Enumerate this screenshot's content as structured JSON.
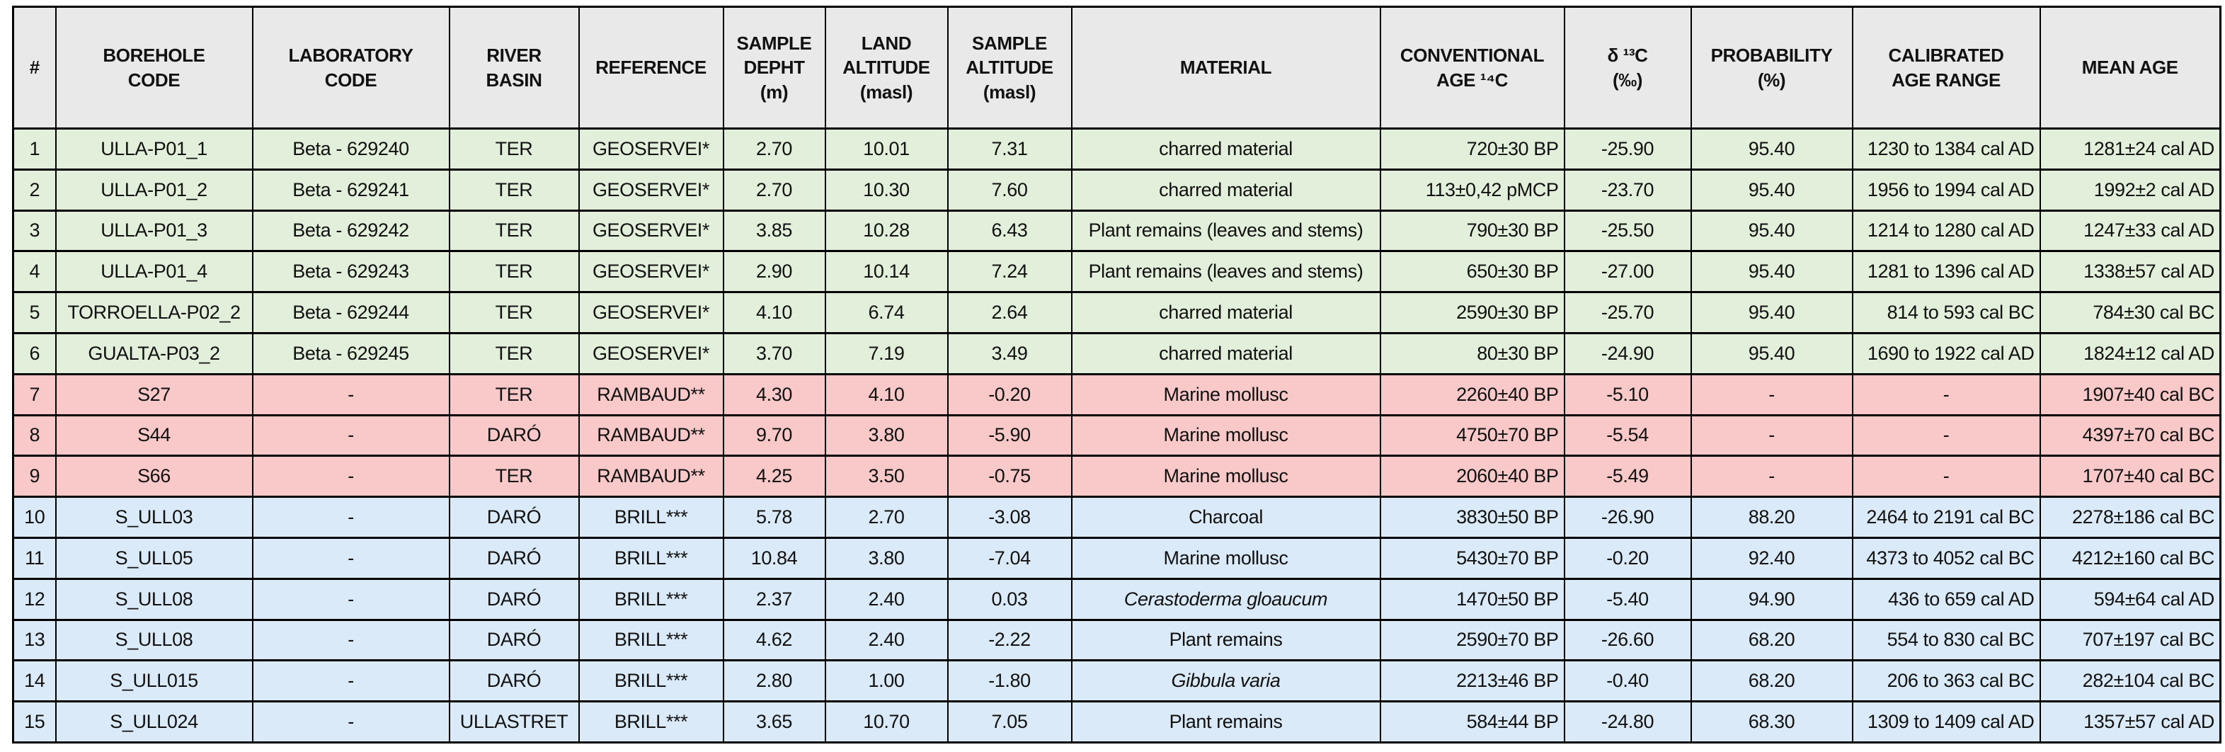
{
  "chart_data": {
    "type": "table",
    "columns": [
      {
        "label": "#",
        "align": "center"
      },
      {
        "label": "BOREHOLE\nCODE",
        "align": "center"
      },
      {
        "label": "LABORATORY\nCODE",
        "align": "center"
      },
      {
        "label": "RIVER\nBASIN",
        "align": "center"
      },
      {
        "label": "REFERENCE",
        "align": "center"
      },
      {
        "label": "SAMPLE\nDEPHT\n(m)",
        "align": "center"
      },
      {
        "label": "LAND\nALTITUDE\n(masl)",
        "align": "center"
      },
      {
        "label": "SAMPLE\nALTITUDE\n(masl)",
        "align": "center"
      },
      {
        "label": "MATERIAL",
        "align": "center"
      },
      {
        "label": "CONVENTIONAL\nAGE ¹⁴C",
        "align": "right"
      },
      {
        "label": "δ ¹³C\n(‰)",
        "align": "center"
      },
      {
        "label": "PROBABILITY\n(%)",
        "align": "center"
      },
      {
        "label": "CALIBRATED\nAGE RANGE",
        "align": "right"
      },
      {
        "label": "MEAN AGE",
        "align": "right"
      }
    ],
    "empty_marker": "-",
    "header_bg": "#e9e9e9",
    "group_colors": {
      "green": "#e2efda",
      "pink": "#f9c8c8",
      "blue": "#daeaf8"
    },
    "rows": [
      {
        "group": "green",
        "italic_cells": [],
        "cells": [
          "1",
          "ULLA-P01_1",
          "Beta - 629240",
          "TER",
          "GEOSERVEI*",
          "2.70",
          "10.01",
          "7.31",
          "charred material",
          "720±30 BP",
          "-25.90",
          "95.40",
          "1230 to 1384 cal AD",
          "1281±24 cal AD"
        ]
      },
      {
        "group": "green",
        "italic_cells": [],
        "cells": [
          "2",
          "ULLA-P01_2",
          "Beta - 629241",
          "TER",
          "GEOSERVEI*",
          "2.70",
          "10.30",
          "7.60",
          "charred material",
          "113±0,42 pMCP",
          "-23.70",
          "95.40",
          "1956 to 1994 cal AD",
          "1992±2 cal AD"
        ]
      },
      {
        "group": "green",
        "italic_cells": [],
        "cells": [
          "3",
          "ULLA-P01_3",
          "Beta - 629242",
          "TER",
          "GEOSERVEI*",
          "3.85",
          "10.28",
          "6.43",
          "Plant remains (leaves and stems)",
          "790±30 BP",
          "-25.50",
          "95.40",
          "1214 to 1280 cal AD",
          "1247±33 cal AD"
        ]
      },
      {
        "group": "green",
        "italic_cells": [],
        "cells": [
          "4",
          "ULLA-P01_4",
          "Beta - 629243",
          "TER",
          "GEOSERVEI*",
          "2.90",
          "10.14",
          "7.24",
          "Plant remains (leaves and stems)",
          "650±30 BP",
          "-27.00",
          "95.40",
          "1281 to 1396 cal AD",
          "1338±57 cal AD"
        ]
      },
      {
        "group": "green",
        "italic_cells": [],
        "cells": [
          "5",
          "TORROELLA-P02_2",
          "Beta - 629244",
          "TER",
          "GEOSERVEI*",
          "4.10",
          "6.74",
          "2.64",
          "charred material",
          "2590±30 BP",
          "-25.70",
          "95.40",
          "814 to 593 cal BC",
          "784±30 cal BC"
        ]
      },
      {
        "group": "green",
        "italic_cells": [],
        "cells": [
          "6",
          "GUALTA-P03_2",
          "Beta - 629245",
          "TER",
          "GEOSERVEI*",
          "3.70",
          "7.19",
          "3.49",
          "charred material",
          "80±30 BP",
          "-24.90",
          "95.40",
          "1690 to 1922 cal AD",
          "1824±12 cal AD"
        ]
      },
      {
        "group": "pink",
        "italic_cells": [],
        "cells": [
          "7",
          "S27",
          "-",
          "TER",
          "RAMBAUD**",
          "4.30",
          "4.10",
          "-0.20",
          "Marine mollusc",
          "2260±40 BP",
          "-5.10",
          "-",
          "-",
          "1907±40 cal BC"
        ]
      },
      {
        "group": "pink",
        "italic_cells": [],
        "cells": [
          "8",
          "S44",
          "-",
          "DARÓ",
          "RAMBAUD**",
          "9.70",
          "3.80",
          "-5.90",
          "Marine mollusc",
          "4750±70 BP",
          "-5.54",
          "-",
          "-",
          "4397±70 cal BC"
        ]
      },
      {
        "group": "pink",
        "italic_cells": [],
        "cells": [
          "9",
          "S66",
          "-",
          "TER",
          "RAMBAUD**",
          "4.25",
          "3.50",
          "-0.75",
          "Marine mollusc",
          "2060±40 BP",
          "-5.49",
          "-",
          "-",
          "1707±40 cal BC"
        ]
      },
      {
        "group": "blue",
        "italic_cells": [],
        "cells": [
          "10",
          "S_ULL03",
          "-",
          "DARÓ",
          "BRILL***",
          "5.78",
          "2.70",
          "-3.08",
          "Charcoal",
          "3830±50 BP",
          "-26.90",
          "88.20",
          "2464 to 2191 cal BC",
          "2278±186 cal BC"
        ]
      },
      {
        "group": "blue",
        "italic_cells": [],
        "cells": [
          "11",
          "S_ULL05",
          "-",
          "DARÓ",
          "BRILL***",
          "10.84",
          "3.80",
          "-7.04",
          "Marine mollusc",
          "5430±70 BP",
          "-0.20",
          "92.40",
          "4373 to 4052 cal BC",
          "4212±160 cal BC"
        ]
      },
      {
        "group": "blue",
        "italic_cells": [
          8
        ],
        "cells": [
          "12",
          "S_ULL08",
          "-",
          "DARÓ",
          "BRILL***",
          "2.37",
          "2.40",
          "0.03",
          "Cerastoderma gloaucum",
          "1470±50 BP",
          "-5.40",
          "94.90",
          "436 to 659 cal AD",
          "594±64 cal AD"
        ]
      },
      {
        "group": "blue",
        "italic_cells": [],
        "cells": [
          "13",
          "S_ULL08",
          "-",
          "DARÓ",
          "BRILL***",
          "4.62",
          "2.40",
          "-2.22",
          "Plant remains",
          "2590±70 BP",
          "-26.60",
          "68.20",
          "554 to 830 cal BC",
          "707±197 cal BC"
        ]
      },
      {
        "group": "blue",
        "italic_cells": [
          8
        ],
        "cells": [
          "14",
          "S_ULL015",
          "-",
          "DARÓ",
          "BRILL***",
          "2.80",
          "1.00",
          "-1.80",
          "Gibbula varia",
          "2213±46 BP",
          "-0.40",
          "68.20",
          "206 to 363 cal BC",
          "282±104 cal BC"
        ]
      },
      {
        "group": "blue",
        "italic_cells": [],
        "cells": [
          "15",
          "S_ULL024",
          "-",
          "ULLASTRET",
          "BRILL***",
          "3.65",
          "10.70",
          "7.05",
          "Plant remains",
          "584±44 BP",
          "-24.80",
          "68.30",
          "1309 to 1409 cal AD",
          "1357±57 cal AD"
        ]
      }
    ]
  }
}
